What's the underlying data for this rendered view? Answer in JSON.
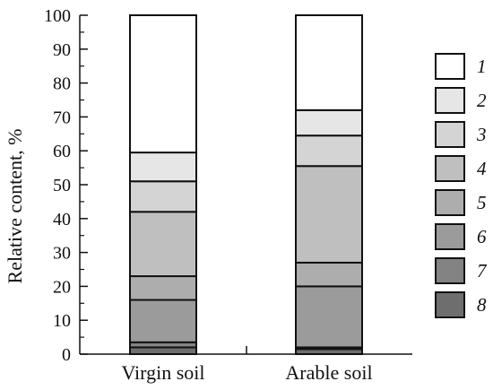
{
  "chart_data": {
    "type": "bar",
    "stacked": true,
    "categories": [
      "Virgin soil",
      "Arable soil"
    ],
    "ylabel": "Relative content, %",
    "ylim": [
      0,
      100
    ],
    "yticks": [
      0,
      10,
      20,
      30,
      40,
      50,
      60,
      70,
      80,
      90,
      100
    ],
    "legend_position": "right",
    "grid": false,
    "series": [
      {
        "name": "8",
        "values": [
          2,
          1.5
        ],
        "color": "#6e6e6e"
      },
      {
        "name": "7",
        "values": [
          1.5,
          0.5
        ],
        "color": "#838383"
      },
      {
        "name": "6",
        "values": [
          12.5,
          18
        ],
        "color": "#9b9b9b"
      },
      {
        "name": "5",
        "values": [
          7,
          7
        ],
        "color": "#adadad"
      },
      {
        "name": "4",
        "values": [
          19,
          28.5
        ],
        "color": "#bfbfbf"
      },
      {
        "name": "3",
        "values": [
          9,
          9
        ],
        "color": "#d4d4d4"
      },
      {
        "name": "2",
        "values": [
          8.5,
          7.5
        ],
        "color": "#e6e6e6"
      },
      {
        "name": "1",
        "values": [
          40.5,
          28
        ],
        "color": "#ffffff"
      }
    ],
    "legend": [
      "1",
      "2",
      "3",
      "4",
      "5",
      "6",
      "7",
      "8"
    ]
  }
}
